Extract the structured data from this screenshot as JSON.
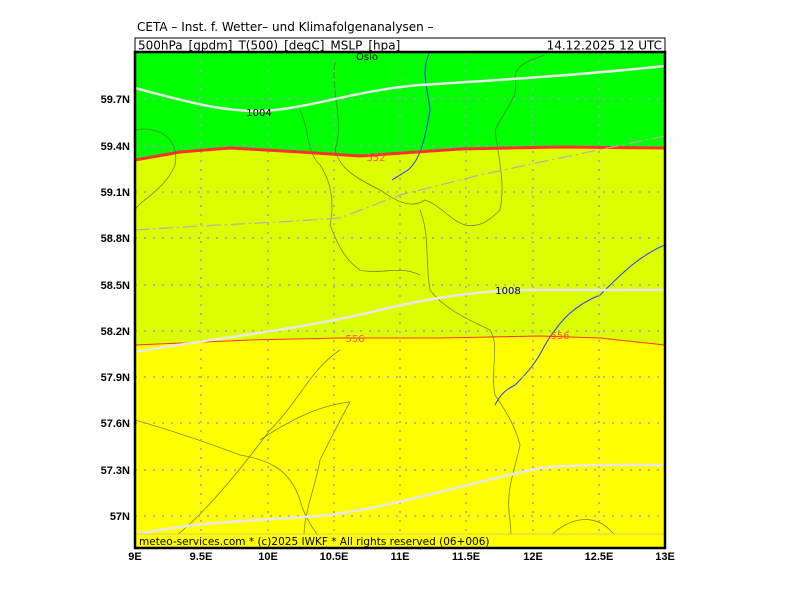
{
  "header": {
    "title": "CETA – Inst. f. Wetter– und Klimafolgenanalysen –",
    "fields": "500hPa_[gpdm]_T(500)_[degC]_MSLP_[hpa]",
    "valid_time": "14.12.2025  12 UTC"
  },
  "footer": {
    "copyright": "meteo-services.com * (c)2025 IWKF * All rights reserved (06+006)"
  },
  "axes": {
    "lat_ticks": [
      "59.7N",
      "59.4N",
      "59.1N",
      "58.8N",
      "58.5N",
      "58.2N",
      "57.9N",
      "57.6N",
      "57.3N",
      "57N"
    ],
    "lon_ticks": [
      "9E",
      "9.5E",
      "10E",
      "10.5E",
      "11E",
      "11.5E",
      "12E",
      "12.5E",
      "13E"
    ]
  },
  "labels": {
    "city": "Oslo",
    "isobar_1004": "1004",
    "isobar_1008": "1008",
    "geopot_552": "552",
    "geopot_556_a": "556",
    "geopot_556_b": "556"
  },
  "colors": {
    "gpdm_below_552": "#00ff00",
    "gpdm_552_556": "#dcff00",
    "gpdm_above_556": "#ffff00",
    "geopotential_contour": "#ff3030",
    "isobar": "#e8e8e8",
    "border": "#2040ff"
  }
}
